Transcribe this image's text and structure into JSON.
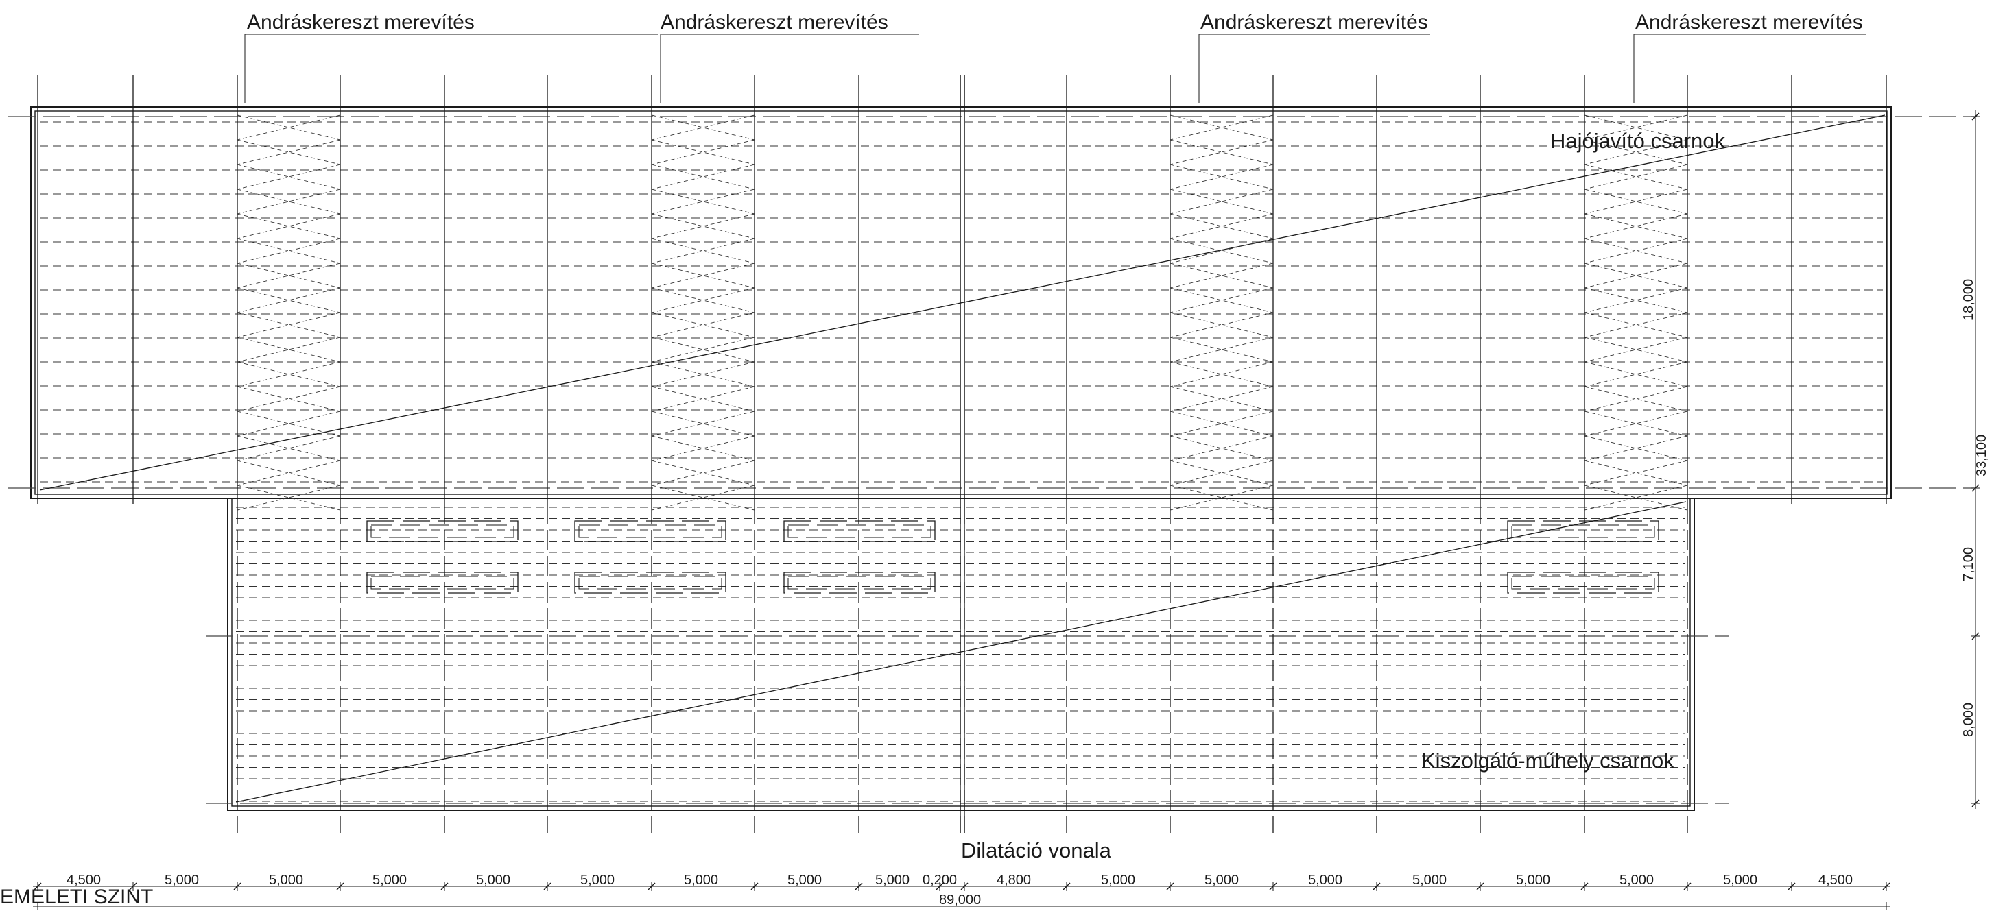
{
  "bracing_labels": [
    "Andráskereszt merevítés",
    "Andráskereszt merevítés",
    "Andráskereszt merevítés",
    "Andráskereszt merevítés"
  ],
  "halls": {
    "upper": "Hajójavító csarnok",
    "lower": "Kiszolgáló-műhely csarnok"
  },
  "dilatation_label": "Dilatáció vonala",
  "level_label": "EMELETI SZINT",
  "horizontal_dims": [
    "4,500",
    "5,000",
    "5,000",
    "5,000",
    "5,000",
    "5,000",
    "5,000",
    "5,000",
    "5,000",
    "0,200",
    "4,800",
    "5,000",
    "5,000",
    "5,000",
    "5,000",
    "5,000",
    "5,000",
    "5,000",
    "4,500"
  ],
  "total_dim": "89,000",
  "vertical_dims": [
    "18,000",
    "7,100",
    "8,000"
  ],
  "vertical_total_partial": "33,100"
}
